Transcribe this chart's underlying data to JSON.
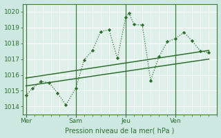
{
  "background_color": "#cce8e0",
  "plot_bg_color": "#dff0ea",
  "grid_color": "#ffffff",
  "line_color": "#2d6e2d",
  "axis_color": "#3a7a3a",
  "title": "Pression niveau de la mer( hPa )",
  "ylim": [
    1013.5,
    1020.5
  ],
  "yticks": [
    1014,
    1015,
    1016,
    1017,
    1018,
    1019,
    1020
  ],
  "day_labels": [
    "Mer",
    "Sam",
    "Jeu",
    "Ven"
  ],
  "day_positions": [
    0.0,
    3.0,
    6.0,
    9.0
  ],
  "xmin": -0.2,
  "xmax": 11.5,
  "series1_x": [
    0,
    0.4,
    0.9,
    1.4,
    1.9,
    2.4,
    3.0,
    3.5,
    4.0,
    4.5,
    5.0,
    5.5,
    6.0,
    6.2,
    6.5,
    7.0,
    7.5,
    8.0,
    8.5,
    9.0,
    9.5,
    10.0,
    10.5,
    11.0
  ],
  "series1_y": [
    1014.7,
    1015.15,
    1015.6,
    1015.5,
    1014.85,
    1014.1,
    1015.15,
    1016.95,
    1017.55,
    1018.75,
    1018.85,
    1017.05,
    1019.65,
    1019.9,
    1019.2,
    1019.15,
    1015.65,
    1017.15,
    1018.1,
    1018.3,
    1018.7,
    1018.15,
    1017.5,
    1017.4
  ],
  "series2_x": [
    0.0,
    11.0
  ],
  "series2_y": [
    1015.3,
    1017.0
  ],
  "series3_x": [
    0.0,
    11.0
  ],
  "series3_y": [
    1015.8,
    1017.55
  ],
  "minor_x_spacing": 0.5
}
